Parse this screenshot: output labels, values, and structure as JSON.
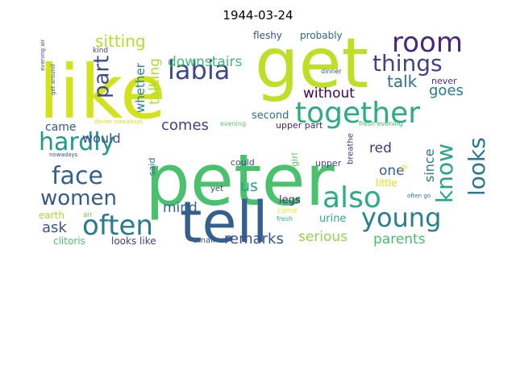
{
  "title": "1944-03-24",
  "words": [
    {
      "text": "like",
      "color": "#d2e21b",
      "vertical": false
    },
    {
      "text": "get",
      "color": "#bddf26",
      "vertical": false
    },
    {
      "text": "peter",
      "color": "#4ac16d",
      "vertical": false
    },
    {
      "text": "tell",
      "color": "#355f8d",
      "vertical": false
    },
    {
      "text": "room",
      "color": "#482979",
      "vertical": false
    },
    {
      "text": "together",
      "color": "#29af7f",
      "vertical": false
    },
    {
      "text": "things",
      "color": "#424086",
      "vertical": false
    },
    {
      "text": "labia",
      "color": "#3e4989",
      "vertical": false
    },
    {
      "text": "part",
      "color": "#3e4a89",
      "vertical": true
    },
    {
      "text": "sitting",
      "color": "#b5de2b",
      "vertical": false
    },
    {
      "text": "downstairs",
      "color": "#3dbc74",
      "vertical": false
    },
    {
      "text": "whether",
      "color": "#27808e",
      "vertical": true
    },
    {
      "text": "talking",
      "color": "#addc30",
      "vertical": true
    },
    {
      "text": "fleshy",
      "color": "#3b528b",
      "vertical": false
    },
    {
      "text": "probably",
      "color": "#33638d",
      "vertical": false
    },
    {
      "text": "talk",
      "color": "#2c728e",
      "vertical": false
    },
    {
      "text": "goes",
      "color": "#2a788e",
      "vertical": false
    },
    {
      "text": "know",
      "color": "#22a785",
      "vertical": true
    },
    {
      "text": "looks",
      "color": "#2a788e",
      "vertical": true
    },
    {
      "text": "hardly",
      "color": "#1f9a8a",
      "vertical": false
    },
    {
      "text": "face",
      "color": "#355f8d",
      "vertical": false
    },
    {
      "text": "women",
      "color": "#38598c",
      "vertical": false
    },
    {
      "text": "often",
      "color": "#287c8e",
      "vertical": false
    },
    {
      "text": "also",
      "color": "#29af7f",
      "vertical": false
    },
    {
      "text": "young",
      "color": "#26818e",
      "vertical": false
    },
    {
      "text": "comes",
      "color": "#433e85",
      "vertical": false
    },
    {
      "text": "came",
      "color": "#3a548c",
      "vertical": false
    },
    {
      "text": "would",
      "color": "#3c4f8a",
      "vertical": false
    },
    {
      "text": "without",
      "color": "#440154",
      "vertical": false
    },
    {
      "text": "red",
      "color": "#46337e",
      "vertical": false
    },
    {
      "text": "one",
      "color": "#365c8d",
      "vertical": false
    },
    {
      "text": "since",
      "color": "#2a778e",
      "vertical": true
    },
    {
      "text": "second",
      "color": "#2d708e",
      "vertical": false
    },
    {
      "text": "upper part",
      "color": "#482576",
      "vertical": false
    },
    {
      "text": "mind",
      "color": "#30698e",
      "vertical": false
    },
    {
      "text": "us",
      "color": "#1fa187",
      "vertical": false
    },
    {
      "text": "ask",
      "color": "#3b528b",
      "vertical": false
    },
    {
      "text": "remarks",
      "color": "#3b528b",
      "vertical": false
    },
    {
      "text": "serious",
      "color": "#8fd744",
      "vertical": false
    },
    {
      "text": "parents",
      "color": "#45bf70",
      "vertical": false
    },
    {
      "text": "legs",
      "color": "#482979",
      "vertical": false
    },
    {
      "text": "urine",
      "color": "#2ab07f",
      "vertical": false
    },
    {
      "text": "clitoris",
      "color": "#4cc26c",
      "vertical": false
    },
    {
      "text": "looks like",
      "color": "#424086",
      "vertical": false
    },
    {
      "text": "earth",
      "color": "#aadc32",
      "vertical": false
    },
    {
      "text": "air",
      "color": "#6ccd5a",
      "vertical": false
    },
    {
      "text": "small",
      "color": "#375a8c",
      "vertical": false
    },
    {
      "text": "yet",
      "color": "#3e4a89",
      "vertical": false
    },
    {
      "text": "could",
      "color": "#3f4788",
      "vertical": false
    },
    {
      "text": "girl",
      "color": "#5ec962",
      "vertical": true
    },
    {
      "text": "said",
      "color": "#2c728e",
      "vertical": true
    },
    {
      "text": "upper",
      "color": "#404688",
      "vertical": false
    },
    {
      "text": "little",
      "color": "#dde318",
      "vertical": false
    },
    {
      "text": "breathe",
      "color": "#453781",
      "vertical": true
    },
    {
      "text": "come",
      "color": "#fde725",
      "vertical": false
    },
    {
      "text": "fresh",
      "color": "#2fb47c",
      "vertical": false
    },
    {
      "text": "fresh evening",
      "color": "#3bbb75",
      "vertical": false
    },
    {
      "text": "evening",
      "color": "#5ec962",
      "vertical": false
    },
    {
      "text": "never",
      "color": "#46307e",
      "vertical": false
    },
    {
      "text": "dinner",
      "color": "#39558c",
      "vertical": false
    },
    {
      "text": "kind",
      "color": "#414487",
      "vertical": false
    },
    {
      "text": "evening air",
      "color": "#3e4c8a",
      "vertical": true
    },
    {
      "text": "get around",
      "color": "#3b528b",
      "vertical": true
    },
    {
      "text": "nowadays",
      "color": "#3f4889",
      "vertical": false
    },
    {
      "text": "dinner nowadays",
      "color": "#d8e219",
      "vertical": false
    },
    {
      "text": "often go",
      "color": "#2a778e",
      "vertical": false
    },
    {
      "text": "go",
      "color": "#e5e419",
      "vertical": false
    }
  ]
}
